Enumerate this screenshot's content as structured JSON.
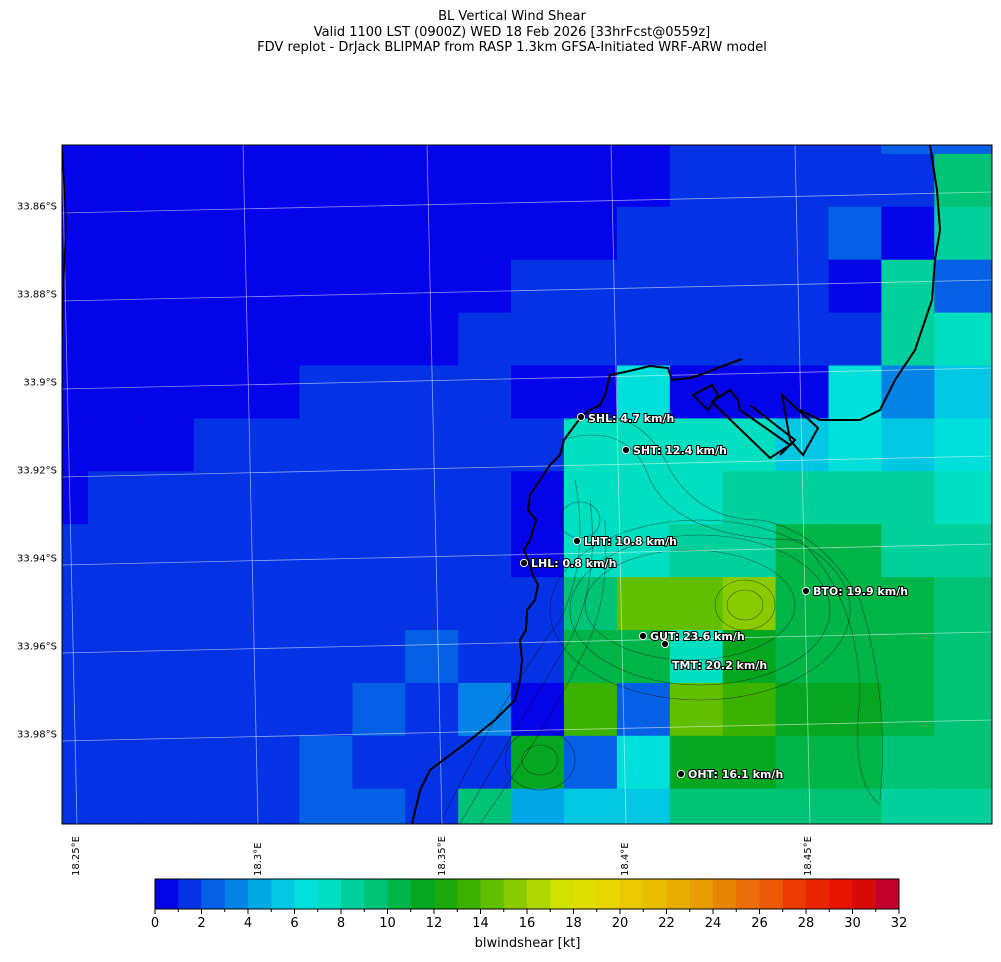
{
  "title": {
    "line1": "BL Vertical Wind Shear",
    "line2": "Valid 1100 LST (0900Z) WED 18 Feb 2026 [33hrFcst@0559z]",
    "line3": "FDV replot - DrJack BLIPMAP from RASP 1.3km GFSA-Initiated WRF-ARW model"
  },
  "map": {
    "lat_labels": [
      "33.86°S",
      "33.88°S",
      "33.9°S",
      "33.92°S",
      "33.94°S",
      "33.96°S",
      "33.98°S"
    ],
    "lon_labels": [
      "18.25°E",
      "18.3°E",
      "18.35°E",
      "18.4°E",
      "18.45°E"
    ],
    "field_kt_rows": [
      [
        0,
        0,
        0,
        0,
        0,
        0,
        0,
        0,
        0,
        0,
        0,
        0,
        1,
        1,
        1,
        1,
        2,
        2,
        2
      ],
      [
        0,
        0,
        0,
        0,
        0,
        0,
        0,
        0,
        0,
        0,
        0,
        0,
        1,
        1,
        1,
        1,
        1,
        9,
        9
      ],
      [
        0,
        0,
        0,
        0,
        0,
        0,
        0,
        0,
        0,
        0,
        0,
        1,
        1,
        1,
        1,
        2,
        0,
        8,
        8
      ],
      [
        0,
        0,
        0,
        0,
        0,
        0,
        0,
        0,
        0,
        1,
        1,
        1,
        1,
        1,
        1,
        0,
        8,
        2,
        2
      ],
      [
        0,
        0,
        0,
        0,
        0,
        0,
        0,
        0,
        1,
        1,
        1,
        1,
        1,
        1,
        1,
        1,
        8,
        7,
        7
      ],
      [
        0,
        0,
        0,
        0,
        0,
        1,
        1,
        1,
        1,
        0,
        0,
        6,
        0,
        0,
        0,
        6,
        3,
        5,
        5
      ],
      [
        0,
        0,
        0,
        1,
        1,
        1,
        1,
        1,
        1,
        1,
        7,
        7,
        7,
        7,
        5,
        6,
        5,
        6,
        6
      ],
      [
        0,
        1,
        1,
        1,
        1,
        1,
        1,
        1,
        1,
        0,
        7,
        7,
        7,
        8,
        8,
        8,
        8,
        7,
        7
      ],
      [
        1,
        1,
        1,
        1,
        1,
        1,
        1,
        1,
        1,
        0,
        7,
        7,
        8,
        8,
        10,
        10,
        8,
        8,
        8
      ],
      [
        1,
        1,
        1,
        1,
        1,
        1,
        1,
        1,
        1,
        1,
        9,
        14,
        14,
        15,
        10,
        10,
        10,
        9,
        9
      ],
      [
        1,
        1,
        1,
        1,
        1,
        1,
        1,
        2,
        1,
        1,
        10,
        10,
        7,
        11,
        10,
        10,
        10,
        9,
        9
      ],
      [
        1,
        1,
        1,
        1,
        1,
        1,
        2,
        1,
        3,
        0,
        13,
        2,
        14,
        13,
        11,
        11,
        10,
        9,
        9
      ],
      [
        1,
        1,
        1,
        1,
        1,
        2,
        1,
        1,
        1,
        11,
        2,
        6,
        11,
        11,
        10,
        10,
        9,
        9,
        9
      ],
      [
        1,
        1,
        1,
        1,
        1,
        2,
        2,
        1,
        9,
        4,
        5,
        5,
        9,
        9,
        9,
        9,
        8,
        8,
        8
      ]
    ],
    "stations": [
      {
        "id": "SHL",
        "label": "SHL: 4.7 km/h"
      },
      {
        "id": "SHT",
        "label": "SHT: 12.4 km/h"
      },
      {
        "id": "LHT",
        "label": "LHT: 10.8 km/h"
      },
      {
        "id": "LHL",
        "label": "LHL: 0.8 km/h"
      },
      {
        "id": "BTO",
        "label": "BTO: 19.9 km/h"
      },
      {
        "id": "GUT",
        "label": "GUT: 23.6 km/h"
      },
      {
        "id": "TMT",
        "label": "TMT: 20.2 km/h"
      },
      {
        "id": "OHT",
        "label": "OHT: 16.1 km/h"
      }
    ]
  },
  "colorbar": {
    "label": "blwindshear [kt]",
    "ticks": [
      "0",
      "2",
      "4",
      "6",
      "8",
      "10",
      "12",
      "14",
      "16",
      "18",
      "20",
      "22",
      "24",
      "26",
      "28",
      "30",
      "32"
    ],
    "range": [
      0,
      32
    ],
    "colors": [
      "#0503ea",
      "#0333e5",
      "#0560e6",
      "#0382e8",
      "#02a7e6",
      "#00c8e2",
      "#00e0da",
      "#00dfc0",
      "#00d19c",
      "#00c378",
      "#00b547",
      "#05a720",
      "#1ca90c",
      "#3cb200",
      "#62bf00",
      "#8acb00",
      "#b0d700",
      "#d2e100",
      "#e0df00",
      "#e8d400",
      "#e9c800",
      "#eabc00",
      "#e9ad00",
      "#e99d00",
      "#e88500",
      "#ec6c08",
      "#ec5a08",
      "#ec3a00",
      "#ea2400",
      "#e81400",
      "#d80a08",
      "#c0002a"
    ]
  }
}
